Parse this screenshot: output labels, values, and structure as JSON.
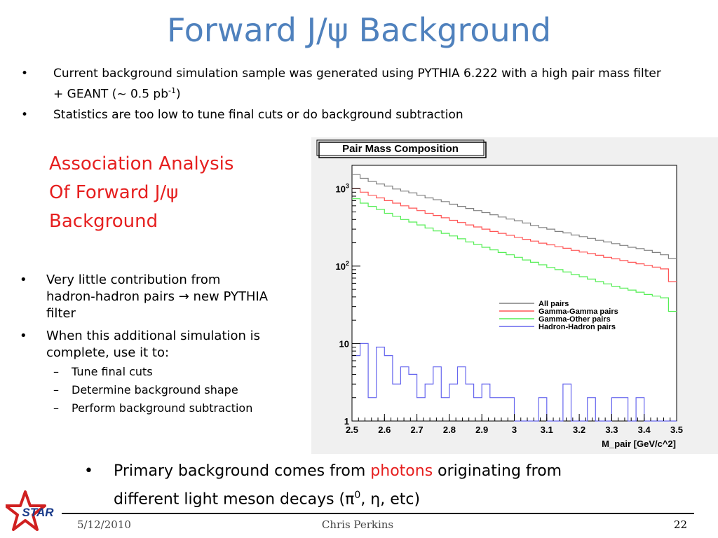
{
  "title": "Forward J/ψ Background",
  "top_bullets": [
    {
      "text": "Current background simulation sample was generated using PYTHIA 6.222 with a high pair mass filter",
      "cont_pre": "+ GEANT (~ 0.5 pb",
      "cont_sup": "-1",
      "cont_post": ")"
    },
    {
      "text": "Statistics are too low to tune final cuts or do background subtraction"
    }
  ],
  "assoc_heading": [
    "Association Analysis",
    "Of Forward J/ψ",
    "Background"
  ],
  "left_bullets": [
    {
      "lines": [
        "Very little contribution from",
        "hadron-hadron pairs → new PYTHIA",
        "filter"
      ]
    },
    {
      "lines": [
        "When this additional simulation is",
        "complete, use it to:"
      ]
    }
  ],
  "sub_bullets": [
    "Tune final cuts",
    "Determine background shape",
    "Perform background subtraction"
  ],
  "primary": {
    "pre": "Primary background comes from ",
    "highlight": "photons",
    "post": " originating from",
    "line2_pre": "different light meson decays (π",
    "line2_sup": "0",
    "line2_post": ", η, etc)"
  },
  "footer": {
    "date": "5/12/2010",
    "author": "Chris Perkins",
    "page": "22"
  },
  "logo_text": "STAR",
  "colors": {
    "title": "#4f81bd",
    "accent_red": "#e61f1f",
    "all": "#808080",
    "gg": "#ff5555",
    "go": "#55ee55",
    "hh": "#6666ee"
  },
  "chart_data": {
    "type": "line",
    "title": "Pair Mass Composition",
    "xlabel": "M_pair [GeV/c^2]",
    "ylabel": "",
    "xlim": [
      2.5,
      3.5
    ],
    "ylim": [
      1,
      2000
    ],
    "yscale": "log",
    "x_ticks": [
      "2.5",
      "2.6",
      "2.7",
      "2.8",
      "2.9",
      "3",
      "3.1",
      "3.2",
      "3.3",
      "3.4",
      "3.5"
    ],
    "y_ticks": [
      {
        "value": 1,
        "base": "1",
        "exp": ""
      },
      {
        "value": 10,
        "base": "10",
        "exp": ""
      },
      {
        "value": 100,
        "base": "10",
        "exp": "2"
      },
      {
        "value": 1000,
        "base": "10",
        "exp": "3"
      }
    ],
    "legend_position": "right",
    "bin_edges": [
      2.5,
      2.525,
      2.55,
      2.575,
      2.6,
      2.625,
      2.65,
      2.675,
      2.7,
      2.725,
      2.75,
      2.775,
      2.8,
      2.825,
      2.85,
      2.875,
      2.9,
      2.925,
      2.95,
      2.975,
      3.0,
      3.025,
      3.05,
      3.075,
      3.1,
      3.125,
      3.15,
      3.175,
      3.2,
      3.225,
      3.25,
      3.275,
      3.3,
      3.325,
      3.35,
      3.375,
      3.4,
      3.425,
      3.45,
      3.475,
      3.5
    ],
    "series": [
      {
        "name": "All pairs",
        "values": [
          1520,
          1360,
          1240,
          1150,
          1080,
          990,
          930,
          880,
          820,
          760,
          720,
          680,
          630,
          590,
          555,
          520,
          490,
          460,
          430,
          405,
          385,
          360,
          335,
          315,
          300,
          280,
          268,
          252,
          240,
          228,
          215,
          205,
          195,
          185,
          175,
          168,
          160,
          150,
          140,
          125
        ]
      },
      {
        "name": "Gamma-Gamma pairs",
        "values": [
          1000,
          900,
          820,
          760,
          700,
          650,
          600,
          560,
          520,
          480,
          450,
          420,
          390,
          365,
          340,
          320,
          300,
          280,
          265,
          250,
          235,
          222,
          210,
          198,
          188,
          178,
          170,
          160,
          152,
          145,
          138,
          130,
          124,
          118,
          112,
          107,
          102,
          97,
          92,
          63
        ]
      },
      {
        "name": "Gamma-Other pairs",
        "values": [
          740,
          650,
          590,
          540,
          480,
          440,
          400,
          370,
          340,
          310,
          285,
          265,
          245,
          225,
          205,
          190,
          175,
          162,
          150,
          140,
          130,
          120,
          112,
          104,
          96,
          90,
          84,
          78,
          73,
          68,
          63,
          59,
          55,
          52,
          49,
          46,
          43,
          41,
          39,
          26
        ]
      },
      {
        "name": "Hadron-Hadron pairs",
        "values": [
          7,
          10,
          2,
          9,
          7,
          3,
          5,
          4,
          2,
          3,
          5,
          2,
          3,
          5,
          3,
          2,
          3,
          2,
          2,
          2,
          1,
          1,
          1,
          2,
          1,
          1,
          3,
          1,
          1,
          2,
          1,
          1,
          2,
          2,
          1,
          2,
          1,
          1,
          1,
          1
        ]
      }
    ]
  }
}
